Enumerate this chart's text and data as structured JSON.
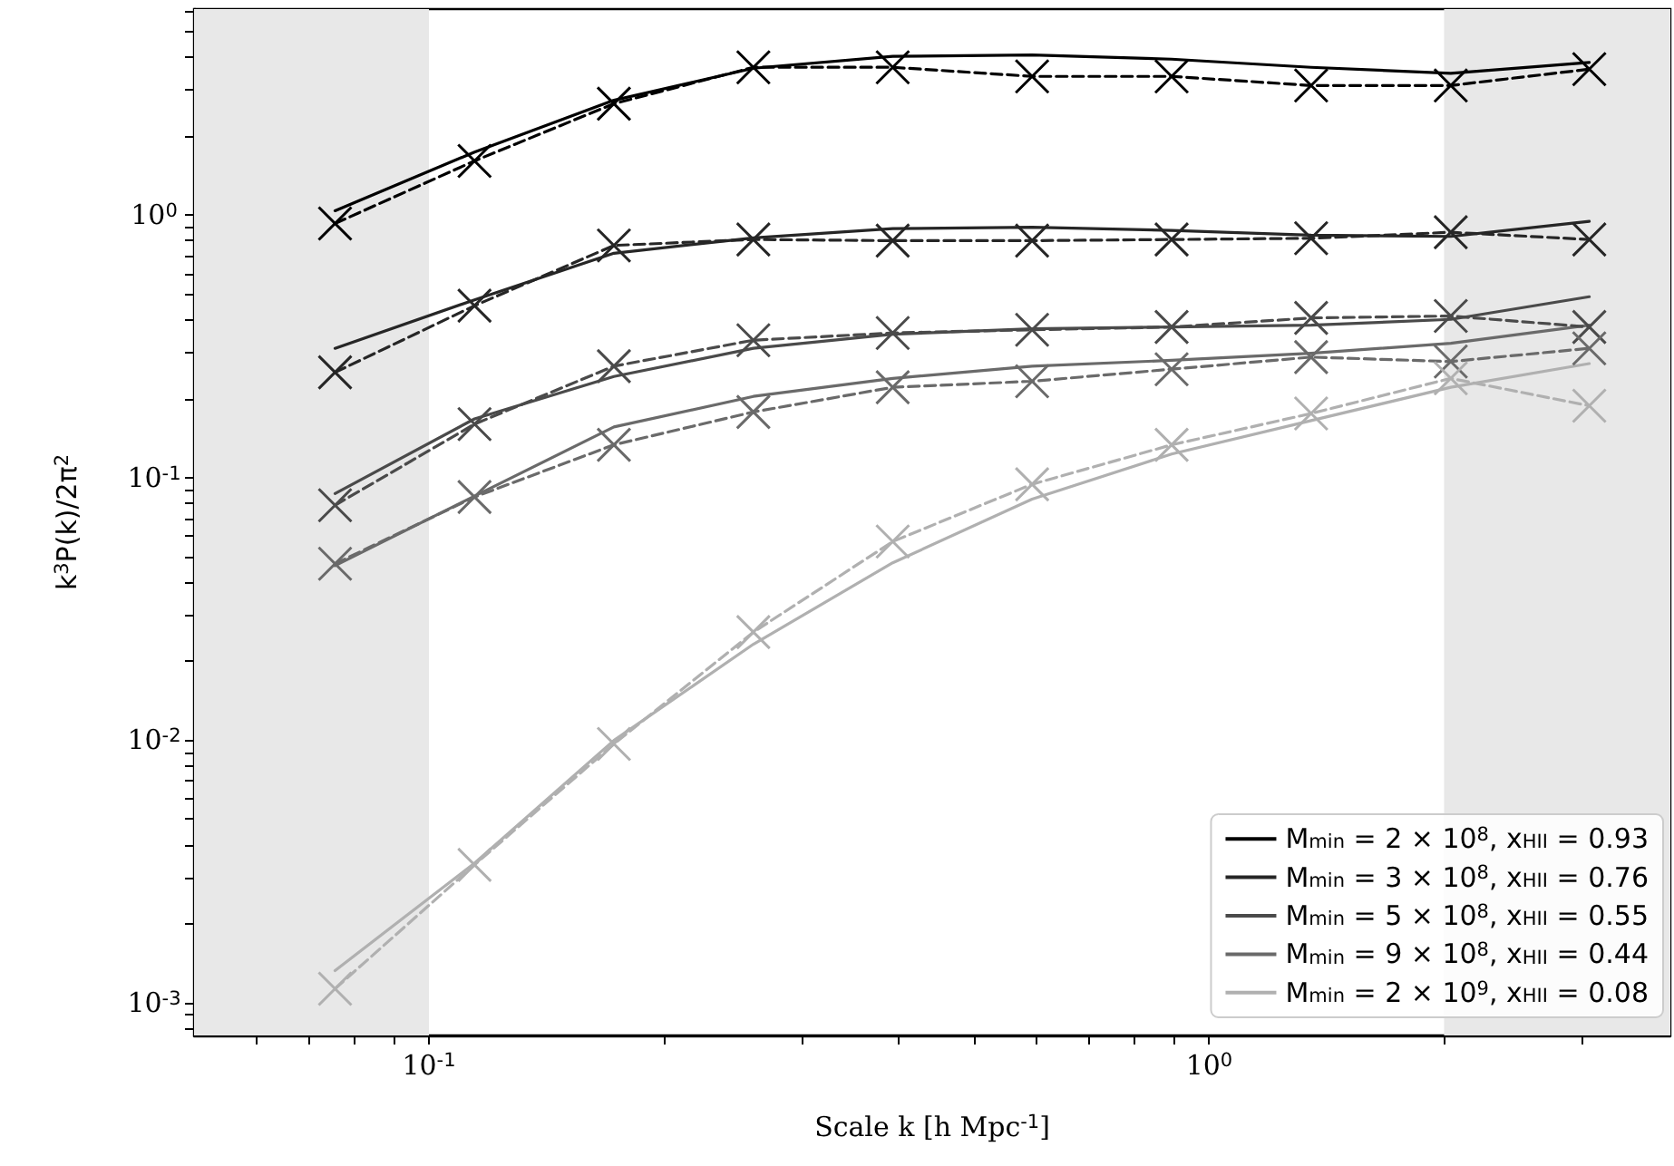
{
  "chart_data": {
    "type": "line",
    "xlabel": "Scale k [h Mpc$^{-1}$]",
    "ylabel": "k$^{3}$P(k)/2π$^{2}$",
    "log": "xy",
    "grid": false,
    "legend": "bottom right",
    "xlim": [
      0.05,
      3.9
    ],
    "ylim": [
      0.00075,
      6.1
    ],
    "xticks": [
      {
        "value": 0.06,
        "label": null
      },
      {
        "value": 0.07,
        "label": null
      },
      {
        "value": 0.08,
        "label": null
      },
      {
        "value": 0.09,
        "label": null
      },
      {
        "value": 0.1,
        "label": "10$^{-1}$"
      },
      {
        "value": 0.2,
        "label": null
      },
      {
        "value": 0.3,
        "label": null
      },
      {
        "value": 0.4,
        "label": null
      },
      {
        "value": 0.5,
        "label": null
      },
      {
        "value": 0.6,
        "label": null
      },
      {
        "value": 0.7,
        "label": null
      },
      {
        "value": 0.8,
        "label": null
      },
      {
        "value": 0.9,
        "label": null
      },
      {
        "value": 1,
        "label": "10$^{0}$"
      },
      {
        "value": 2,
        "label": null
      },
      {
        "value": 3,
        "label": null
      }
    ],
    "yticks": [
      {
        "value": 0.0008,
        "label": null
      },
      {
        "value": 0.0009,
        "label": null
      },
      {
        "value": 0.001,
        "label": "10$^{-3}$"
      },
      {
        "value": 0.002,
        "label": null
      },
      {
        "value": 0.003,
        "label": null
      },
      {
        "value": 0.004,
        "label": null
      },
      {
        "value": 0.005,
        "label": null
      },
      {
        "value": 0.006,
        "label": null
      },
      {
        "value": 0.007,
        "label": null
      },
      {
        "value": 0.008,
        "label": null
      },
      {
        "value": 0.009,
        "label": null
      },
      {
        "value": 0.01,
        "label": "10$^{-2}$"
      },
      {
        "value": 0.02,
        "label": null
      },
      {
        "value": 0.03,
        "label": null
      },
      {
        "value": 0.04,
        "label": null
      },
      {
        "value": 0.05,
        "label": null
      },
      {
        "value": 0.06,
        "label": null
      },
      {
        "value": 0.07,
        "label": null
      },
      {
        "value": 0.08,
        "label": null
      },
      {
        "value": 0.09,
        "label": null
      },
      {
        "value": 0.1,
        "label": "10$^{-1}$"
      },
      {
        "value": 0.2,
        "label": null
      },
      {
        "value": 0.3,
        "label": null
      },
      {
        "value": 0.4,
        "label": null
      },
      {
        "value": 0.5,
        "label": null
      },
      {
        "value": 0.6,
        "label": null
      },
      {
        "value": 0.7,
        "label": null
      },
      {
        "value": 0.8,
        "label": null
      },
      {
        "value": 0.9,
        "label": null
      },
      {
        "value": 1,
        "label": "10$^{0}$"
      },
      {
        "value": 2,
        "label": null
      },
      {
        "value": 3,
        "label": null
      },
      {
        "value": 4,
        "label": null
      },
      {
        "value": 5,
        "label": null
      },
      {
        "value": 6,
        "label": null
      }
    ],
    "bands": [
      {
        "axis": "x",
        "from": 0.05,
        "to": 0.1,
        "color": "#e8e8e8"
      },
      {
        "axis": "x",
        "from": 2,
        "to": 3.9,
        "color": "#e8e8e8"
      }
    ],
    "x": [
      0.0758,
      0.1144,
      0.1726,
      0.2605,
      0.393,
      0.593,
      0.895,
      1.351,
      2.04,
      3.07
    ],
    "series": [
      {
        "name": "M$_{min}$ = 2 × 10$^{8}$, x$_{HII}$ = 0.93",
        "color": "#000000",
        "line_style": "solid",
        "marker": "none",
        "values": [
          1.04,
          1.74,
          2.74,
          3.63,
          4.03,
          4.08,
          3.93,
          3.66,
          3.47,
          3.82
        ]
      },
      {
        "name": "M$_{min}$ = 3 × 10$^{8}$, x$_{HII}$ = 0.76",
        "color": "#262626",
        "line_style": "solid",
        "marker": "none",
        "values": [
          0.311,
          0.476,
          0.716,
          0.82,
          0.889,
          0.9,
          0.875,
          0.839,
          0.83,
          0.947
        ]
      },
      {
        "name": "M$_{min}$ = 5 × 10$^{8}$, x$_{HII}$ = 0.55",
        "color": "#4a4a4a",
        "line_style": "solid",
        "marker": "none",
        "values": [
          0.087,
          0.1675,
          0.243,
          0.311,
          0.352,
          0.369,
          0.375,
          0.381,
          0.401,
          0.489
        ]
      },
      {
        "name": "M$_{min}$ = 9 × 10$^{8}$, x$_{HII}$ = 0.44",
        "color": "#6a6a6a",
        "line_style": "solid",
        "marker": "none",
        "values": [
          0.0462,
          0.0851,
          0.156,
          0.204,
          0.239,
          0.266,
          0.28,
          0.298,
          0.325,
          0.381
        ]
      },
      {
        "name": "M$_{min}$ = 2 × 10$^{9}$, x$_{HII}$ = 0.08",
        "color": "#b0b0b0",
        "line_style": "solid",
        "marker": "none",
        "values": [
          0.001325,
          0.0034,
          0.00998,
          0.0232,
          0.0474,
          0.0828,
          0.123,
          0.165,
          0.221,
          0.272
        ]
      },
      {
        "color": "#000000",
        "line_style": "dashed",
        "marker": "cross",
        "values": [
          0.93,
          1.61,
          2.66,
          3.66,
          3.66,
          3.38,
          3.38,
          3.12,
          3.12,
          3.6
        ]
      },
      {
        "color": "#262626",
        "line_style": "dashed",
        "marker": "cross",
        "values": [
          0.252,
          0.452,
          0.767,
          0.808,
          0.8,
          0.8,
          0.808,
          0.817,
          0.861,
          0.808
        ]
      },
      {
        "color": "#4a4a4a",
        "line_style": "dashed",
        "marker": "cross",
        "values": [
          0.0785,
          0.16,
          0.266,
          0.334,
          0.356,
          0.366,
          0.375,
          0.406,
          0.413,
          0.375
        ]
      },
      {
        "color": "#6a6a6a",
        "line_style": "dashed",
        "marker": "cross",
        "values": [
          0.047,
          0.0844,
          0.1334,
          0.178,
          0.221,
          0.233,
          0.259,
          0.288,
          0.277,
          0.311
        ]
      },
      {
        "color": "#b0b0b0",
        "line_style": "dashed",
        "marker": "cross",
        "values": [
          0.00113,
          0.00335,
          0.00967,
          0.0258,
          0.0571,
          0.0944,
          0.1334,
          0.1756,
          0.239,
          0.188
        ]
      }
    ]
  }
}
